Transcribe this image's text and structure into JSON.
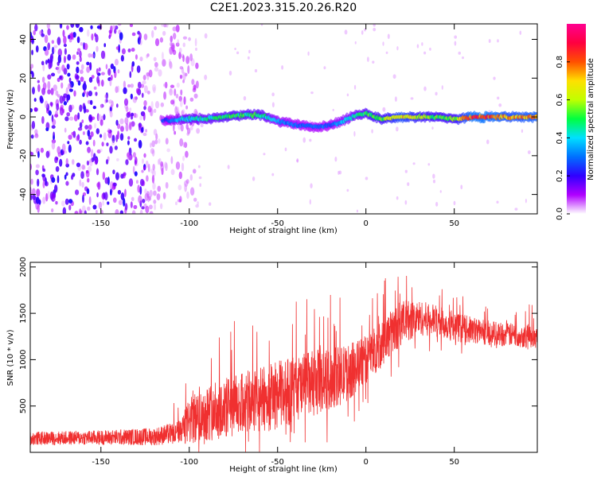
{
  "title": "C2E1.2023.315.20.26.R20",
  "chart_data": [
    {
      "type": "heatmap",
      "xlabel": "Height of straight line (km)",
      "ylabel": "Frequency (Hz)",
      "xlim": [
        -190,
        97
      ],
      "ylim": [
        -50,
        48
      ],
      "xticks": [
        -150,
        -100,
        -50,
        0,
        50
      ],
      "yticks": [
        -40,
        -20,
        0,
        20,
        40
      ],
      "colorbar": {
        "label": "Normalized spectral amplitude",
        "range": [
          0,
          1
        ],
        "ticks": [
          0.0,
          0.2,
          0.4,
          0.6,
          0.8
        ],
        "tick_labels": [
          "0.0",
          "0.2",
          "0.4",
          "0.6",
          "0.8"
        ],
        "colormap": [
          "#ffffff",
          "#b000ff",
          "#3000ff",
          "#0070ff",
          "#00e0ff",
          "#00ff40",
          "#c0ff00",
          "#ffe000",
          "#ff5000",
          "#ff0040",
          "#ff0090"
        ]
      },
      "ridge": {
        "x": [
          -115,
          -100,
          -90,
          -80,
          -70,
          -60,
          -50,
          -40,
          -30,
          -25,
          -20,
          -15,
          -10,
          -5,
          0,
          5,
          10,
          20,
          30,
          40,
          50,
          60,
          70,
          80,
          97
        ],
        "y": [
          -2,
          -1,
          -1,
          0,
          1,
          1,
          -2,
          -4,
          -5,
          -5,
          -4,
          -3,
          -1,
          1,
          2,
          0,
          -1,
          0,
          0,
          0,
          -1,
          0,
          0,
          0,
          0
        ],
        "amplitude": [
          0.25,
          0.45,
          0.45,
          0.5,
          0.5,
          0.5,
          0.35,
          0.3,
          0.3,
          0.3,
          0.3,
          0.35,
          0.4,
          0.45,
          0.5,
          0.55,
          0.55,
          0.75,
          0.6,
          0.55,
          0.55,
          0.85,
          0.85,
          0.75,
          0.8
        ]
      },
      "noise_region_x": [
        -190,
        -100
      ]
    },
    {
      "type": "line",
      "xlabel": "Height of straight line (km)",
      "ylabel": "SNR (10 * v/v)",
      "xlim": [
        -190,
        97
      ],
      "ylim": [
        0,
        2050
      ],
      "xticks": [
        -150,
        -100,
        -50,
        0,
        50
      ],
      "yticks": [
        500,
        1000,
        1500,
        2000
      ],
      "color": "#f03030",
      "envelope": {
        "x": [
          -190,
          -150,
          -120,
          -105,
          -100,
          -90,
          -80,
          -70,
          -60,
          -50,
          -40,
          -30,
          -20,
          -10,
          0,
          10,
          20,
          30,
          40,
          50,
          60,
          70,
          80,
          97
        ],
        "mean": [
          150,
          160,
          170,
          220,
          330,
          430,
          470,
          520,
          560,
          620,
          680,
          740,
          790,
          860,
          1000,
          1200,
          1400,
          1450,
          1420,
          1350,
          1320,
          1290,
          1270,
          1250
        ],
        "spread": [
          90,
          100,
          120,
          160,
          320,
          380,
          420,
          430,
          450,
          460,
          460,
          450,
          420,
          380,
          330,
          320,
          300,
          240,
          210,
          200,
          180,
          170,
          160,
          160
        ]
      }
    }
  ]
}
